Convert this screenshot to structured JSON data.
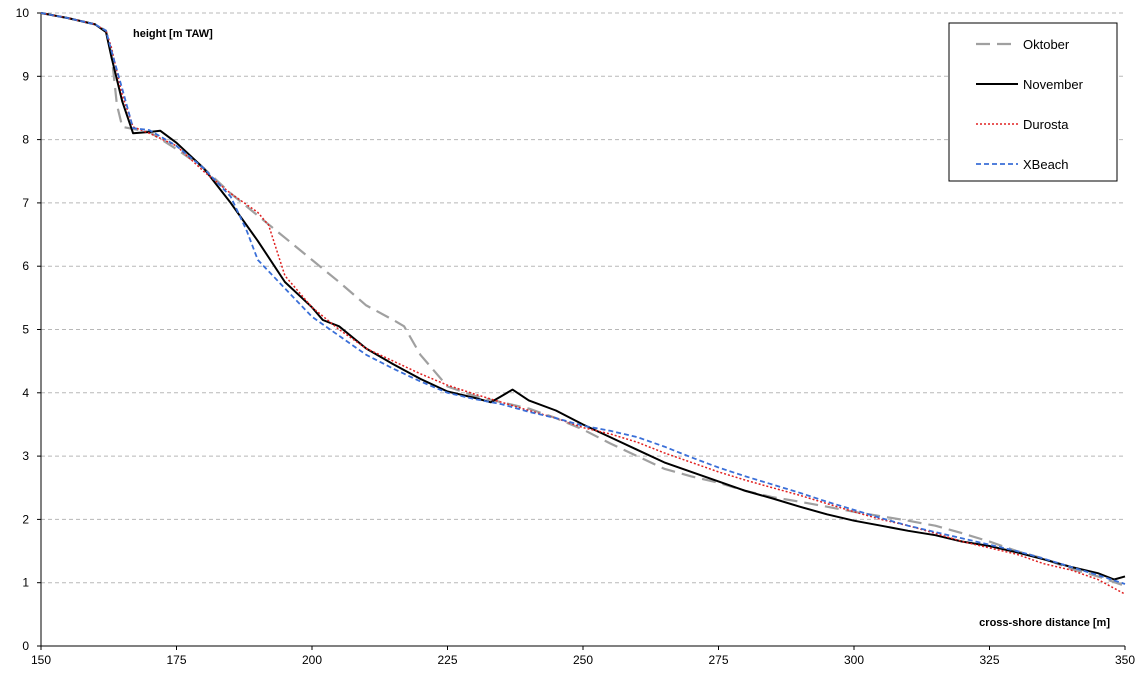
{
  "chart_data": {
    "type": "line",
    "xlabel": "cross-shore distance [m]",
    "ylabel": "height [m TAW]",
    "xlim": [
      150,
      350
    ],
    "ylim": [
      0,
      10
    ],
    "xticks": [
      150,
      175,
      200,
      225,
      250,
      275,
      300,
      325,
      350
    ],
    "yticks": [
      0,
      1,
      2,
      3,
      4,
      5,
      6,
      7,
      8,
      9,
      10
    ],
    "grid": "horizontal dashed",
    "legend_position": "top-right",
    "series": [
      {
        "name": "Oktober",
        "color": "#a0a0a0",
        "style": "long-dash",
        "points": [
          [
            150,
            10
          ],
          [
            155,
            9.92
          ],
          [
            160,
            9.82
          ],
          [
            162,
            9.72
          ],
          [
            163,
            9.35
          ],
          [
            164,
            8.55
          ],
          [
            165,
            8.2
          ],
          [
            170,
            8.12
          ],
          [
            175,
            7.85
          ],
          [
            180,
            7.55
          ],
          [
            185,
            7.15
          ],
          [
            190,
            6.8
          ],
          [
            195,
            6.45
          ],
          [
            200,
            6.1
          ],
          [
            205,
            5.75
          ],
          [
            210,
            5.38
          ],
          [
            215,
            5.15
          ],
          [
            217,
            5.05
          ],
          [
            220,
            4.6
          ],
          [
            225,
            4.1
          ],
          [
            230,
            3.95
          ],
          [
            235,
            3.85
          ],
          [
            240,
            3.75
          ],
          [
            245,
            3.6
          ],
          [
            250,
            3.42
          ],
          [
            255,
            3.2
          ],
          [
            260,
            3.0
          ],
          [
            265,
            2.8
          ],
          [
            270,
            2.68
          ],
          [
            275,
            2.58
          ],
          [
            280,
            2.45
          ],
          [
            285,
            2.35
          ],
          [
            290,
            2.28
          ],
          [
            295,
            2.2
          ],
          [
            300,
            2.12
          ],
          [
            305,
            2.05
          ],
          [
            310,
            1.98
          ],
          [
            315,
            1.9
          ],
          [
            320,
            1.78
          ],
          [
            325,
            1.65
          ],
          [
            330,
            1.5
          ],
          [
            335,
            1.38
          ],
          [
            340,
            1.22
          ],
          [
            345,
            1.1
          ],
          [
            350,
            0.95
          ]
        ]
      },
      {
        "name": "November",
        "color": "#000000",
        "style": "solid",
        "points": [
          [
            150,
            10
          ],
          [
            155,
            9.92
          ],
          [
            160,
            9.82
          ],
          [
            162,
            9.7
          ],
          [
            163,
            9.3
          ],
          [
            165,
            8.6
          ],
          [
            167,
            8.1
          ],
          [
            170,
            8.12
          ],
          [
            172,
            8.14
          ],
          [
            175,
            7.95
          ],
          [
            180,
            7.55
          ],
          [
            185,
            7.0
          ],
          [
            190,
            6.4
          ],
          [
            195,
            5.75
          ],
          [
            200,
            5.35
          ],
          [
            202,
            5.15
          ],
          [
            205,
            5.05
          ],
          [
            210,
            4.7
          ],
          [
            215,
            4.45
          ],
          [
            220,
            4.22
          ],
          [
            225,
            4.02
          ],
          [
            230,
            3.92
          ],
          [
            233,
            3.85
          ],
          [
            235,
            3.95
          ],
          [
            237,
            4.05
          ],
          [
            240,
            3.88
          ],
          [
            245,
            3.72
          ],
          [
            250,
            3.5
          ],
          [
            255,
            3.3
          ],
          [
            260,
            3.1
          ],
          [
            265,
            2.9
          ],
          [
            270,
            2.75
          ],
          [
            275,
            2.6
          ],
          [
            280,
            2.45
          ],
          [
            285,
            2.33
          ],
          [
            290,
            2.2
          ],
          [
            295,
            2.08
          ],
          [
            300,
            1.98
          ],
          [
            305,
            1.9
          ],
          [
            310,
            1.82
          ],
          [
            315,
            1.75
          ],
          [
            320,
            1.65
          ],
          [
            325,
            1.58
          ],
          [
            330,
            1.48
          ],
          [
            335,
            1.37
          ],
          [
            340,
            1.25
          ],
          [
            345,
            1.15
          ],
          [
            348,
            1.05
          ],
          [
            350,
            1.1
          ]
        ]
      },
      {
        "name": "Durosta",
        "color": "#e02020",
        "style": "dotted",
        "points": [
          [
            150,
            10
          ],
          [
            155,
            9.92
          ],
          [
            160,
            9.82
          ],
          [
            162,
            9.72
          ],
          [
            163,
            9.45
          ],
          [
            165,
            8.7
          ],
          [
            167,
            8.2
          ],
          [
            170,
            8.1
          ],
          [
            175,
            7.9
          ],
          [
            180,
            7.5
          ],
          [
            185,
            7.15
          ],
          [
            190,
            6.85
          ],
          [
            192,
            6.65
          ],
          [
            195,
            5.85
          ],
          [
            200,
            5.35
          ],
          [
            205,
            5.0
          ],
          [
            210,
            4.7
          ],
          [
            215,
            4.5
          ],
          [
            220,
            4.3
          ],
          [
            225,
            4.12
          ],
          [
            230,
            3.98
          ],
          [
            235,
            3.85
          ],
          [
            240,
            3.72
          ],
          [
            245,
            3.6
          ],
          [
            250,
            3.45
          ],
          [
            255,
            3.35
          ],
          [
            260,
            3.22
          ],
          [
            265,
            3.05
          ],
          [
            270,
            2.9
          ],
          [
            275,
            2.75
          ],
          [
            280,
            2.62
          ],
          [
            285,
            2.5
          ],
          [
            290,
            2.38
          ],
          [
            295,
            2.25
          ],
          [
            300,
            2.12
          ],
          [
            305,
            2.0
          ],
          [
            310,
            1.9
          ],
          [
            315,
            1.78
          ],
          [
            320,
            1.65
          ],
          [
            325,
            1.55
          ],
          [
            330,
            1.45
          ],
          [
            335,
            1.3
          ],
          [
            340,
            1.2
          ],
          [
            345,
            1.05
          ],
          [
            350,
            0.82
          ]
        ]
      },
      {
        "name": "XBeach",
        "color": "#3a6fd8",
        "style": "short-dash",
        "points": [
          [
            150,
            10
          ],
          [
            155,
            9.92
          ],
          [
            160,
            9.82
          ],
          [
            162,
            9.72
          ],
          [
            163,
            9.4
          ],
          [
            165,
            8.8
          ],
          [
            167,
            8.18
          ],
          [
            170,
            8.15
          ],
          [
            175,
            7.9
          ],
          [
            180,
            7.55
          ],
          [
            185,
            7.1
          ],
          [
            188,
            6.55
          ],
          [
            190,
            6.1
          ],
          [
            195,
            5.65
          ],
          [
            200,
            5.2
          ],
          [
            205,
            4.9
          ],
          [
            210,
            4.6
          ],
          [
            215,
            4.38
          ],
          [
            220,
            4.18
          ],
          [
            225,
            4.0
          ],
          [
            230,
            3.9
          ],
          [
            235,
            3.82
          ],
          [
            240,
            3.7
          ],
          [
            245,
            3.6
          ],
          [
            250,
            3.48
          ],
          [
            255,
            3.4
          ],
          [
            260,
            3.3
          ],
          [
            265,
            3.15
          ],
          [
            270,
            2.98
          ],
          [
            275,
            2.82
          ],
          [
            280,
            2.68
          ],
          [
            285,
            2.55
          ],
          [
            290,
            2.42
          ],
          [
            295,
            2.28
          ],
          [
            300,
            2.15
          ],
          [
            305,
            2.02
          ],
          [
            310,
            1.9
          ],
          [
            315,
            1.8
          ],
          [
            320,
            1.7
          ],
          [
            325,
            1.6
          ],
          [
            330,
            1.5
          ],
          [
            335,
            1.38
          ],
          [
            340,
            1.25
          ],
          [
            345,
            1.12
          ],
          [
            350,
            0.98
          ]
        ]
      }
    ]
  }
}
